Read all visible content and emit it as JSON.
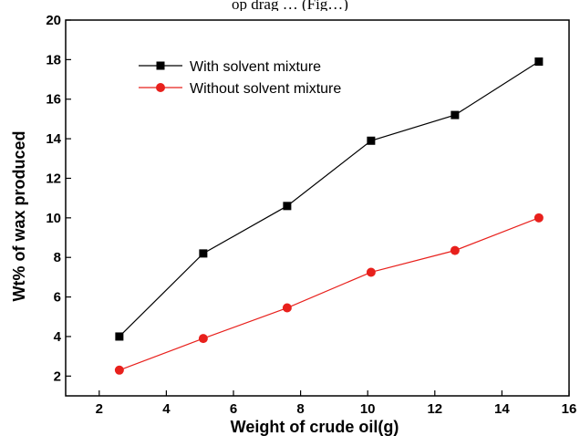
{
  "caption": "op drag … (Fig…)",
  "chart_data": {
    "type": "line",
    "title": "",
    "xlabel": "Weight of crude oil(g)",
    "ylabel": "Wt% of wax produced",
    "xlim": [
      1,
      16
    ],
    "ylim": [
      1,
      20
    ],
    "xticks": [
      2,
      4,
      6,
      8,
      10,
      12,
      14,
      16
    ],
    "yticks": [
      2,
      4,
      6,
      8,
      10,
      12,
      14,
      16,
      18,
      20
    ],
    "grid": false,
    "legend_position": "top-left",
    "series": [
      {
        "name": "With solvent mixture",
        "color": "#000000",
        "marker": "square",
        "x": [
          2.6,
          5.1,
          7.6,
          10.1,
          12.6,
          15.1
        ],
        "y": [
          4.0,
          8.2,
          10.6,
          13.9,
          15.2,
          17.9
        ]
      },
      {
        "name": "Without solvent mixture",
        "color": "#e8201c",
        "marker": "circle",
        "x": [
          2.6,
          5.1,
          7.6,
          10.1,
          12.6,
          15.1
        ],
        "y": [
          2.3,
          3.9,
          5.45,
          7.25,
          8.35,
          10.0
        ]
      }
    ]
  }
}
